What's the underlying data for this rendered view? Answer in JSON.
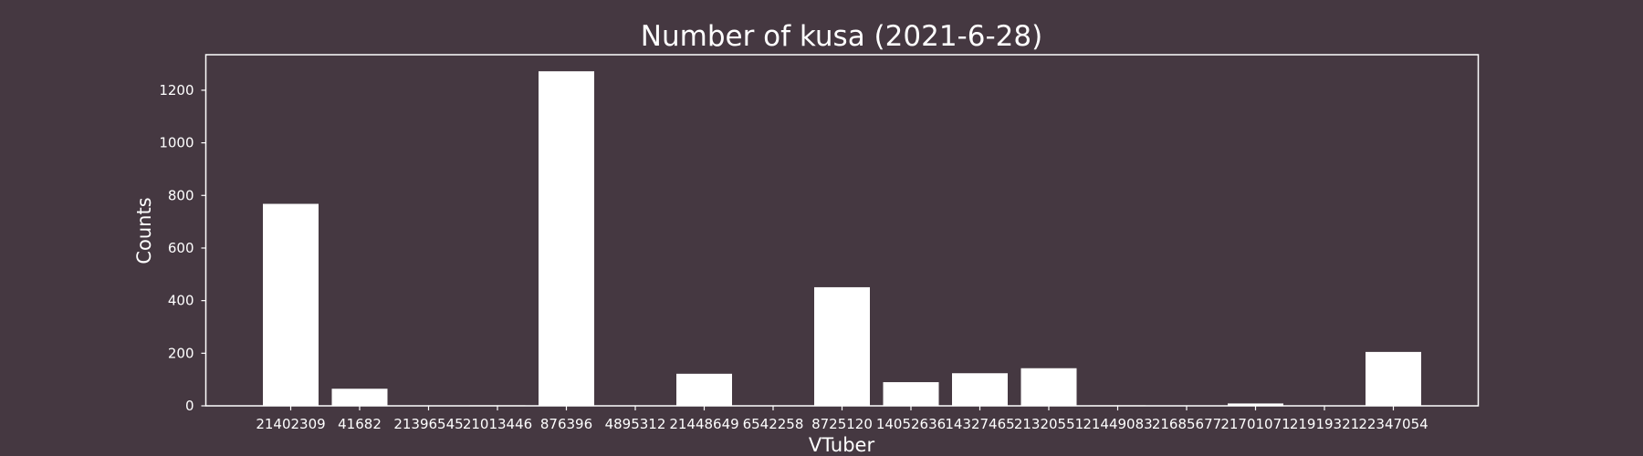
{
  "colors": {
    "background": "#453841",
    "bar": "#ffffff",
    "axis": "#ffffff",
    "text": "#ffffff"
  },
  "chart_data": {
    "type": "bar",
    "title": "Number of kusa (2021-6-28)",
    "xlabel": "VTuber",
    "ylabel": "Counts",
    "categories": [
      "21402309",
      "41682",
      "21396545",
      "21013446",
      "876396",
      "4895312",
      "21448649",
      "6542258",
      "8725120",
      "14052636",
      "14327465",
      "21320551",
      "21449083",
      "21685677",
      "21701071",
      "21919321",
      "22347054"
    ],
    "values": [
      768,
      65,
      0,
      2,
      1272,
      0,
      122,
      0,
      451,
      90,
      124,
      143,
      2,
      0,
      9,
      0,
      205
    ],
    "yticks": [
      0,
      200,
      400,
      600,
      800,
      1000,
      1200
    ],
    "ylim": [
      0,
      1335
    ],
    "grid": false,
    "legend": "none"
  }
}
